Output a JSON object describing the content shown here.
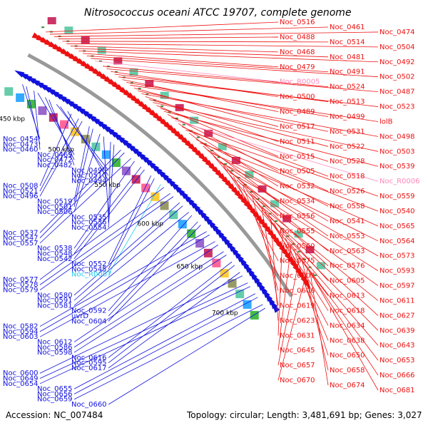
{
  "title": "Nitrosococcus oceani ATCC 19707, complete genome",
  "footer": {
    "accession": "Accession: NC_007484",
    "summary": "Topology: circular; Length: 3,481,691 bp; Genes: 3,027"
  },
  "colors": {
    "forward": "#ee1111",
    "reverse": "#1111dd",
    "rna_forward": "#ff88bb",
    "rna_reverse": "#22ccee",
    "backbone": "#999999",
    "tick": "#338833"
  },
  "kbp_ticks": [
    "450 kbp",
    "500 kbp",
    "550 kbp",
    "600 kbp",
    "650 kbp",
    "700 kbp"
  ],
  "labels_left": [
    "Noc_0454",
    "Noc_0473",
    "Noc_0460",
    "Noc_0469",
    "Noc_0472",
    "Noc_0482",
    "Noc_0490",
    "Noc_0510",
    "Noc_0494",
    "Noc_0508",
    "Noc_0521",
    "Noc_0496",
    "Noc_0519",
    "Noc_0501",
    "Noc_0506",
    "Noc_0535",
    "Noc_0536",
    "Noc_0554",
    "Noc_0537",
    "Noc_0547",
    "Noc_0557",
    "Noc_0538",
    "Noc_0548",
    "Noc_0542",
    "Noc_0552",
    "Noc_0545",
    "Noc_R0007",
    "Noc_0577",
    "Noc_0578",
    "Noc_0579",
    "Noc_0580",
    "Noc_0591",
    "Noc_0581",
    "Noc_0592",
    "uvrD",
    "Noc_0604",
    "Noc_0582",
    "Noc_0594",
    "Noc_0603",
    "Noc_0612",
    "Noc_0586",
    "Noc_0598",
    "Noc_0616",
    "Noc_0595",
    "Noc_0617",
    "Noc_0600",
    "Noc_0649",
    "Noc_0654",
    "Noc_0655",
    "Noc_0656",
    "Noc_0659",
    "Noc_0660"
  ],
  "labels_right": [
    "Noc_0516",
    "Noc_0461",
    "Noc_0474",
    "Noc_0488",
    "Noc_0514",
    "Noc_0504",
    "Noc_0468",
    "Noc_0481",
    "Noc_0492",
    "Noc_0479",
    "Noc_0491",
    "Noc_0502",
    "Noc_R0005",
    "Noc_0524",
    "Noc_0487",
    "Noc_0500",
    "Noc_0513",
    "Noc_0523",
    "Noc_0489",
    "Noc_0499",
    "lolB",
    "Noc_0517",
    "Noc_0531",
    "Noc_0498",
    "Noc_0511",
    "Noc_0522",
    "Noc_0503",
    "Noc_0515",
    "Noc_0528",
    "Noc_0539",
    "Noc_0505",
    "Noc_0518",
    "Noc_R0006",
    "Noc_0532",
    "Noc_0526",
    "Noc_0559",
    "Noc_0534",
    "Noc_0558",
    "Noc_0540",
    "Noc_0556",
    "Noc_0541",
    "Noc_0565",
    "Noc_0555",
    "Noc_0553",
    "Noc_0564",
    "Noc_0560",
    "Noc_0563",
    "Noc_0573",
    "Noc_0575",
    "Noc_0576",
    "Noc_0593",
    "Noc_0607",
    "Noc_0605",
    "Noc_0597",
    "Noc_0606",
    "Noc_0613",
    "Noc_0611",
    "Noc_0619",
    "Noc_0618",
    "Noc_0627",
    "Noc_0623",
    "Noc_0634",
    "Noc_0639",
    "Noc_0631",
    "Noc_0638",
    "Noc_0643",
    "Noc_0645",
    "Noc_0650",
    "Noc_0653",
    "Noc_0657",
    "Noc_0658",
    "Noc_0666",
    "Noc_0670",
    "Noc_0674",
    "Noc_0681"
  ]
}
